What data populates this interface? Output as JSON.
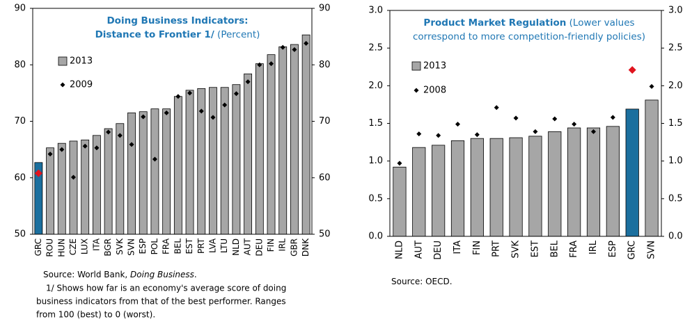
{
  "chart_data": [
    {
      "type": "bar",
      "title": [
        "Doing Business Indicators:",
        "Distance to Frontier 1/"
      ],
      "subtitle": "(Percent)",
      "categories": [
        "GRC",
        "ROU",
        "HUN",
        "CZE",
        "LUX",
        "ITA",
        "BGR",
        "SVK",
        "SVN",
        "ESP",
        "POL",
        "FRA",
        "BEL",
        "EST",
        "PRT",
        "LVA",
        "LTU",
        "NLD",
        "AUT",
        "DEU",
        "FIN",
        "IRL",
        "GBR",
        "DNK"
      ],
      "series": [
        {
          "name": "2013",
          "kind": "bar",
          "color": "#a6a6a6",
          "colors": [
            "#1b6f9e",
            "#a6a6a6",
            "#a6a6a6",
            "#a6a6a6",
            "#a6a6a6",
            "#a6a6a6",
            "#a6a6a6",
            "#a6a6a6",
            "#a6a6a6",
            "#a6a6a6",
            "#a6a6a6",
            "#a6a6a6",
            "#a6a6a6",
            "#a6a6a6",
            "#a6a6a6",
            "#a6a6a6",
            "#a6a6a6",
            "#a6a6a6",
            "#a6a6a6",
            "#a6a6a6",
            "#a6a6a6",
            "#a6a6a6",
            "#a6a6a6",
            "#a6a6a6"
          ],
          "values": [
            62.7,
            65.3,
            66.1,
            66.5,
            66.7,
            67.5,
            68.7,
            69.6,
            71.5,
            71.7,
            72.2,
            72.2,
            74.4,
            75.5,
            75.8,
            76.0,
            76.0,
            76.5,
            78.4,
            80.2,
            81.8,
            83.2,
            83.6,
            85.3
          ]
        },
        {
          "name": "2009",
          "kind": "marker",
          "color": "#000000",
          "colors": [
            "#e0141e",
            "#000000",
            "#000000",
            "#000000",
            "#000000",
            "#000000",
            "#000000",
            "#000000",
            "#000000",
            "#000000",
            "#000000",
            "#000000",
            "#000000",
            "#000000",
            "#000000",
            "#000000",
            "#000000",
            "#000000",
            "#000000",
            "#000000",
            "#000000",
            "#000000",
            "#000000",
            "#000000"
          ],
          "values": [
            60.8,
            64.2,
            65.0,
            60.1,
            65.6,
            65.3,
            68.1,
            67.5,
            65.9,
            70.8,
            63.3,
            71.5,
            74.4,
            75.0,
            71.8,
            70.7,
            72.9,
            74.9,
            77.0,
            80.0,
            80.2,
            83.1,
            82.7,
            83.8
          ]
        }
      ],
      "ylim": [
        50,
        90
      ],
      "yticks": [
        50,
        60,
        70,
        80,
        90
      ],
      "source": [
        "Source:  World Bank, ",
        "Doing Business",
        "."
      ],
      "notes": [
        "1/ Shows how far is an economy's average score of doing",
        "business indicators from that of the best performer. Ranges",
        "from 100 (best) to 0 (worst)."
      ]
    },
    {
      "type": "bar",
      "title": [
        "Product Market Regulation"
      ],
      "subtitle": [
        "(Lower values",
        "correspond to more competition-friendly policies)"
      ],
      "categories": [
        "NLD",
        "AUT",
        "DEU",
        "ITA",
        "FIN",
        "PRT",
        "SVK",
        "EST",
        "BEL",
        "FRA",
        "IRL",
        "ESP",
        "GRC",
        "SVN"
      ],
      "series": [
        {
          "name": "2013",
          "kind": "bar",
          "color": "#a6a6a6",
          "colors": [
            "#a6a6a6",
            "#a6a6a6",
            "#a6a6a6",
            "#a6a6a6",
            "#a6a6a6",
            "#a6a6a6",
            "#a6a6a6",
            "#a6a6a6",
            "#a6a6a6",
            "#a6a6a6",
            "#a6a6a6",
            "#a6a6a6",
            "#1b6f9e",
            "#a6a6a6"
          ],
          "values": [
            0.92,
            1.18,
            1.21,
            1.27,
            1.3,
            1.3,
            1.31,
            1.33,
            1.39,
            1.44,
            1.44,
            1.46,
            1.69,
            1.81
          ]
        },
        {
          "name": "2008",
          "kind": "marker",
          "color": "#000000",
          "colors": [
            "#000000",
            "#000000",
            "#000000",
            "#000000",
            "#000000",
            "#000000",
            "#000000",
            "#000000",
            "#000000",
            "#000000",
            "#000000",
            "#000000",
            "#e0141e",
            "#000000"
          ],
          "values": [
            0.97,
            1.36,
            1.34,
            1.49,
            1.35,
            1.71,
            1.57,
            1.39,
            1.56,
            1.49,
            1.39,
            1.58,
            2.21,
            1.99
          ]
        }
      ],
      "ylim": [
        0,
        3
      ],
      "yticks": [
        {
          "value": 0,
          "label": "0.0"
        },
        0.5,
        {
          "value": 1,
          "label": "1.0"
        },
        1.5,
        {
          "value": 2,
          "label": "2.0"
        },
        2.5,
        {
          "value": 3,
          "label": "3.0"
        }
      ],
      "source": [
        "Source: OECD."
      ]
    }
  ]
}
